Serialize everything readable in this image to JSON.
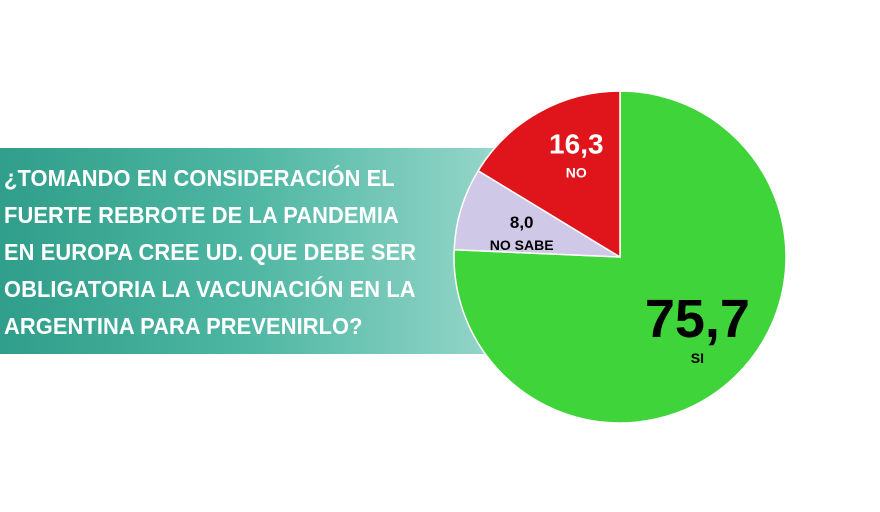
{
  "question": "¿TOMANDO EN CONSIDERACIÓN EL FUERTE REBROTE DE LA PANDEMIA EN EUROPA CREE UD. QUE DEBE SER OBLIGATORIA LA VACUNACIÓN EN LA ARGENTINA PARA PREVENIRLO?",
  "chart_data": {
    "type": "pie",
    "slices": [
      {
        "label": "SI",
        "value": 75.7,
        "display": "75,7",
        "color": "#3ed43a"
      },
      {
        "label": "NO SABE",
        "value": 8.0,
        "display": "8,0",
        "color": "#cfc8e6"
      },
      {
        "label": "NO",
        "value": 16.3,
        "display": "16,3",
        "color": "#e0151b"
      }
    ],
    "start_angle": "top",
    "direction": "clockwise",
    "legend": "none"
  }
}
